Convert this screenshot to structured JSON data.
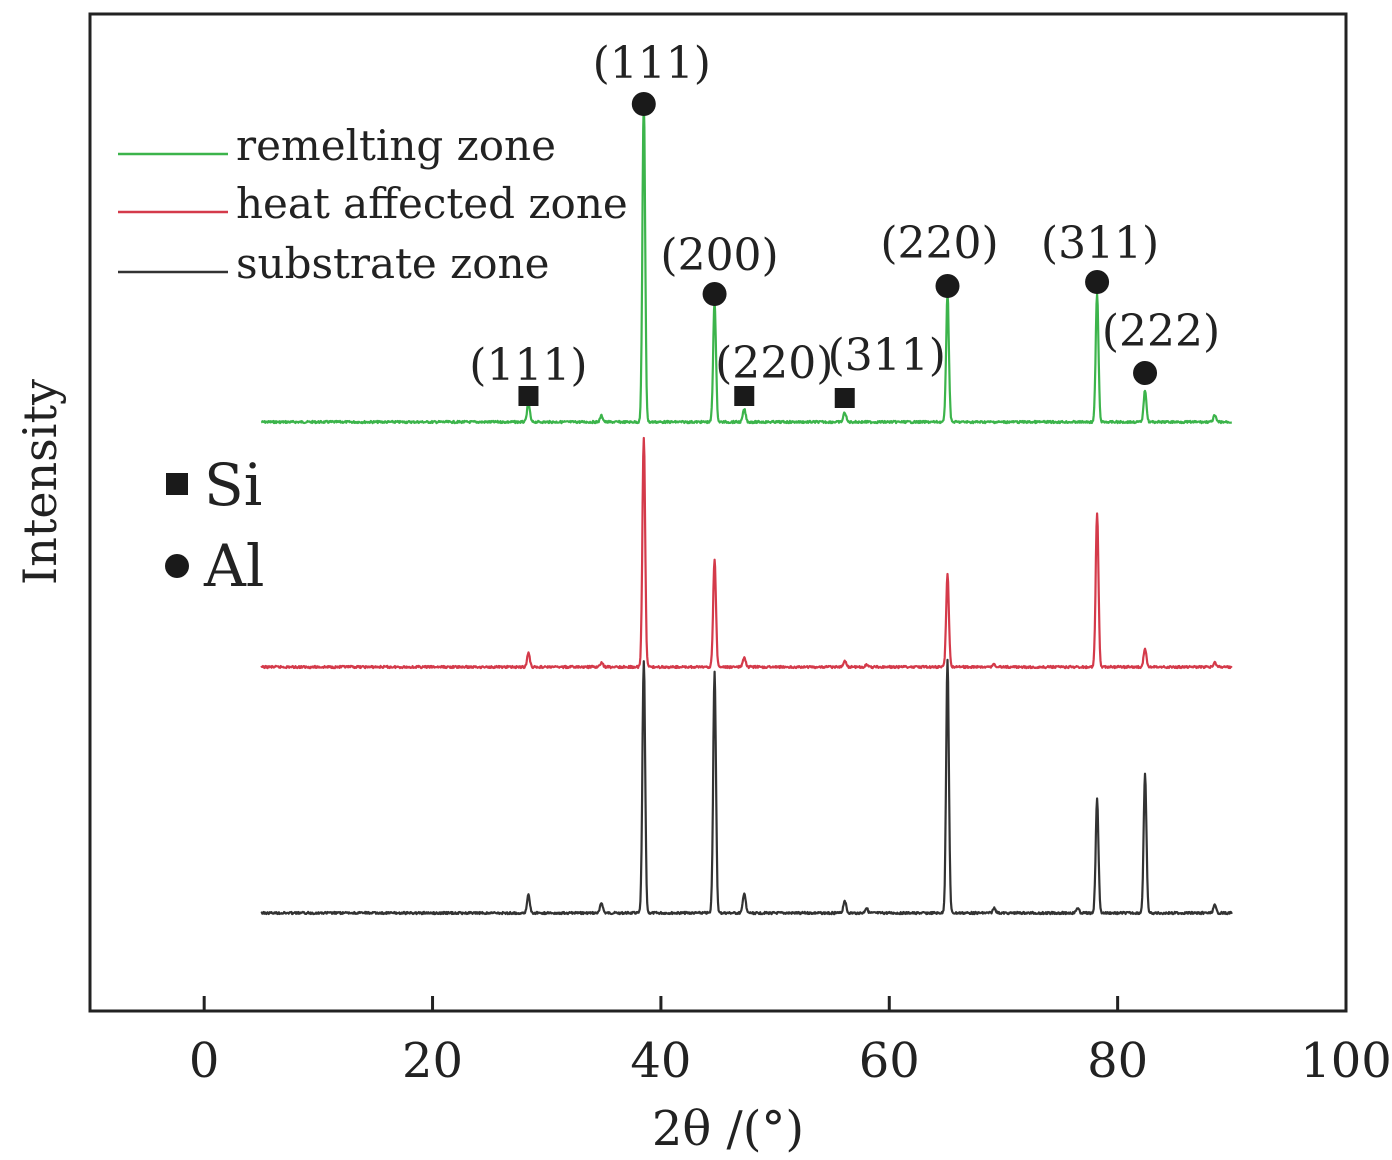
{
  "chart_data": {
    "type": "line",
    "xlabel": "2θ /(°)",
    "ylabel": "Intensity",
    "xlim": [
      -10,
      100
    ],
    "xticks": [
      "0",
      "20",
      "40",
      "60",
      "80",
      "100"
    ],
    "xtick_values": [
      0,
      20,
      40,
      60,
      80,
      100
    ],
    "legend": {
      "placement": "top-left",
      "entries": [
        "remelting zone",
        "heat affected zone",
        "substrate zone"
      ]
    },
    "phase_legend": {
      "placement": "left",
      "entries": [
        {
          "label": "Si",
          "marker": "square"
        },
        {
          "label": "Al",
          "marker": "circle"
        }
      ]
    },
    "x_range": [
      5,
      90
    ],
    "series": [
      {
        "name": "remelting zone",
        "color": "#3cb44b",
        "peaks": [
          {
            "x": 28.4,
            "h": 0.06
          },
          {
            "x": 34.8,
            "h": 0.02
          },
          {
            "x": 38.5,
            "h": 1.0
          },
          {
            "x": 44.7,
            "h": 0.38
          },
          {
            "x": 47.3,
            "h": 0.04
          },
          {
            "x": 56.1,
            "h": 0.03
          },
          {
            "x": 65.1,
            "h": 0.4
          },
          {
            "x": 78.2,
            "h": 0.4
          },
          {
            "x": 82.4,
            "h": 0.1
          },
          {
            "x": 88.5,
            "h": 0.02
          }
        ]
      },
      {
        "name": "heat affected zone",
        "color": "#d43a4a",
        "peaks": [
          {
            "x": 28.4,
            "h": 0.06
          },
          {
            "x": 34.8,
            "h": 0.02
          },
          {
            "x": 38.5,
            "h": 1.0
          },
          {
            "x": 44.7,
            "h": 0.47
          },
          {
            "x": 47.3,
            "h": 0.04
          },
          {
            "x": 56.1,
            "h": 0.03
          },
          {
            "x": 58.0,
            "h": 0.01
          },
          {
            "x": 65.1,
            "h": 0.4
          },
          {
            "x": 69.2,
            "h": 0.01
          },
          {
            "x": 78.2,
            "h": 0.67
          },
          {
            "x": 82.4,
            "h": 0.08
          },
          {
            "x": 88.5,
            "h": 0.02
          }
        ]
      },
      {
        "name": "substrate zone",
        "color": "#333333",
        "peaks": [
          {
            "x": 28.4,
            "h": 0.07
          },
          {
            "x": 34.8,
            "h": 0.04
          },
          {
            "x": 38.5,
            "h": 1.0
          },
          {
            "x": 44.7,
            "h": 0.96
          },
          {
            "x": 47.3,
            "h": 0.08
          },
          {
            "x": 56.1,
            "h": 0.05
          },
          {
            "x": 58.0,
            "h": 0.02
          },
          {
            "x": 65.1,
            "h": 1.0
          },
          {
            "x": 69.2,
            "h": 0.02
          },
          {
            "x": 76.5,
            "h": 0.02
          },
          {
            "x": 78.2,
            "h": 0.45
          },
          {
            "x": 82.4,
            "h": 0.55
          },
          {
            "x": 88.5,
            "h": 0.03
          }
        ]
      }
    ],
    "annotations": [
      {
        "x": 28.4,
        "marker": "square",
        "label": "(111)"
      },
      {
        "x": 38.5,
        "marker": "circle",
        "label": "(111)"
      },
      {
        "x": 44.7,
        "marker": "circle",
        "label": "(200)"
      },
      {
        "x": 47.3,
        "marker": "square",
        "label": "(220)"
      },
      {
        "x": 56.1,
        "marker": "square",
        "label": "(311)"
      },
      {
        "x": 65.1,
        "marker": "circle",
        "label": "(220)"
      },
      {
        "x": 78.2,
        "marker": "circle",
        "label": "(311)"
      },
      {
        "x": 82.4,
        "marker": "circle",
        "label": "(222)"
      }
    ]
  }
}
